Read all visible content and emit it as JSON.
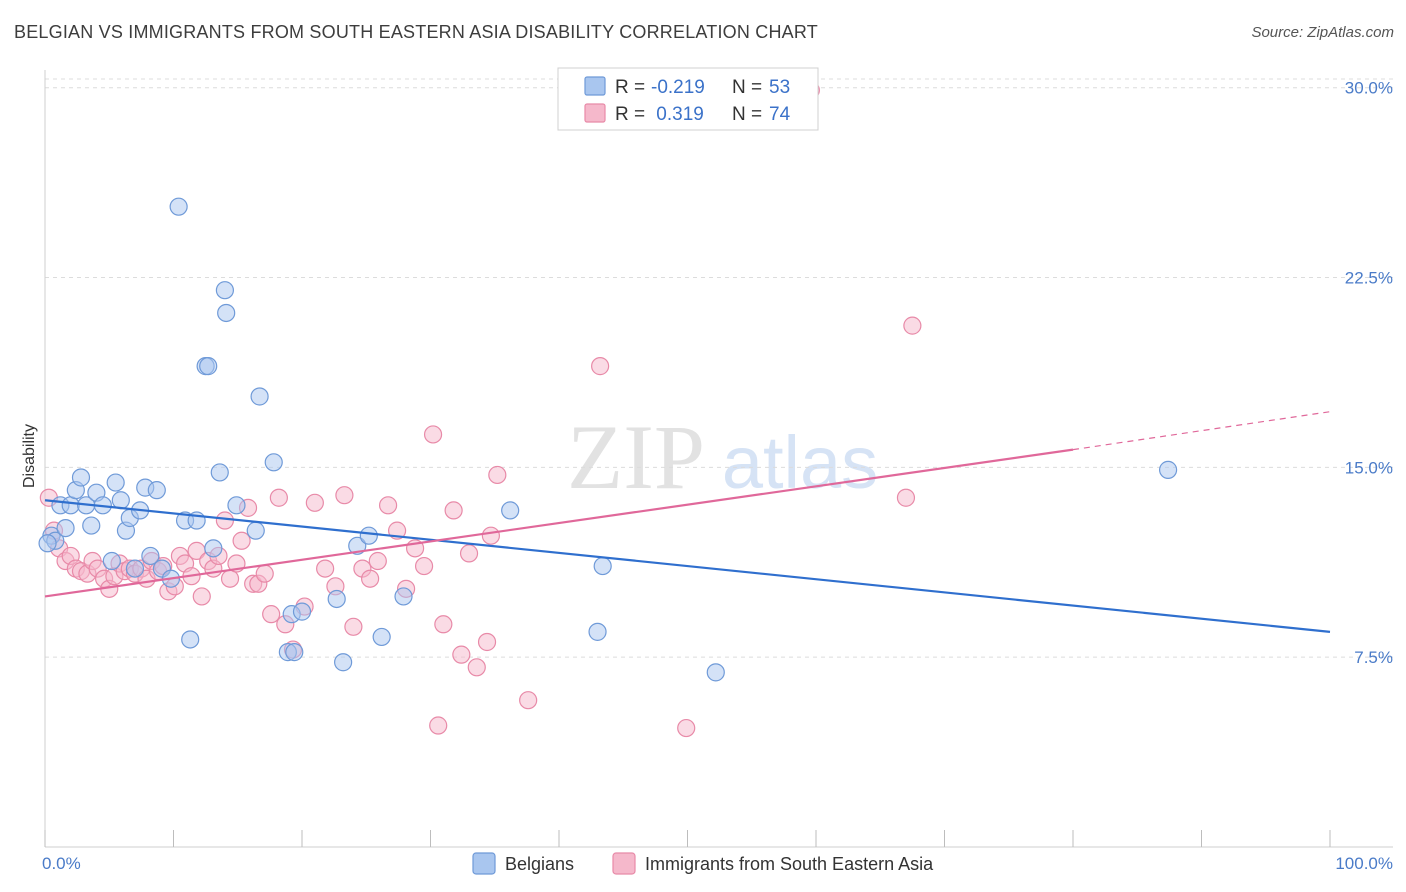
{
  "header": {
    "title": "BELGIAN VS IMMIGRANTS FROM SOUTH EASTERN ASIA DISABILITY CORRELATION CHART",
    "source": "Source: ZipAtlas.com"
  },
  "watermark": {
    "zip": "ZIP",
    "atlas": "atlas"
  },
  "colors": {
    "belgians_fill": "#a9c6ef",
    "belgians_stroke": "#6f9ad8",
    "belgians_line": "#2f6fce",
    "immigrants_fill": "#f5b8cb",
    "immigrants_stroke": "#e88aa8",
    "immigrants_line": "#e0689a",
    "tick_label": "#4a7bc8"
  },
  "stats_legend": {
    "rows": [
      {
        "r_label": "R =",
        "r_value": "-0.219",
        "n_label": "N =",
        "n_value": "53"
      },
      {
        "r_label": "R =",
        "r_value": " 0.319",
        "n_label": "N =",
        "n_value": "74"
      }
    ]
  },
  "chart_data": {
    "type": "scatter",
    "title": "BELGIAN VS IMMIGRANTS FROM SOUTH EASTERN ASIA DISABILITY CORRELATION CHART",
    "xlabel": "",
    "ylabel": "Disability",
    "xlim": [
      0,
      100
    ],
    "ylim": [
      0,
      30.7
    ],
    "x_tick_labels": [
      "0.0%",
      "100.0%"
    ],
    "y_ticks": [
      7.5,
      15.0,
      22.5,
      30.0
    ],
    "y_tick_labels": [
      "7.5%",
      "15.0%",
      "22.5%",
      "30.0%"
    ],
    "grid": true,
    "legend": [
      "Belgians",
      "Immigrants from South Eastern Asia"
    ],
    "series": [
      {
        "name": "Belgians",
        "r": -0.219,
        "n": 53,
        "trend": {
          "x_start": 0,
          "y_start": 13.7,
          "x_end": 100,
          "y_end": 8.5
        },
        "points": [
          [
            0.5,
            12.3
          ],
          [
            0.8,
            12.1
          ],
          [
            1.2,
            13.5
          ],
          [
            1.6,
            12.6
          ],
          [
            2.0,
            13.5
          ],
          [
            2.4,
            14.1
          ],
          [
            2.8,
            14.6
          ],
          [
            3.2,
            13.5
          ],
          [
            3.6,
            12.7
          ],
          [
            4.0,
            14.0
          ],
          [
            4.5,
            13.5
          ],
          [
            5.2,
            11.3
          ],
          [
            5.5,
            14.4
          ],
          [
            5.9,
            13.7
          ],
          [
            6.3,
            12.5
          ],
          [
            6.6,
            13.0
          ],
          [
            7.0,
            11.0
          ],
          [
            7.4,
            13.3
          ],
          [
            7.8,
            14.2
          ],
          [
            8.2,
            11.5
          ],
          [
            8.7,
            14.1
          ],
          [
            9.1,
            11.0
          ],
          [
            9.8,
            10.6
          ],
          [
            10.4,
            25.3
          ],
          [
            10.9,
            12.9
          ],
          [
            11.3,
            8.2
          ],
          [
            11.8,
            12.9
          ],
          [
            12.5,
            19.0
          ],
          [
            12.7,
            19.0
          ],
          [
            13.1,
            11.8
          ],
          [
            13.6,
            14.8
          ],
          [
            14.0,
            22.0
          ],
          [
            14.1,
            21.1
          ],
          [
            14.9,
            13.5
          ],
          [
            16.4,
            12.5
          ],
          [
            16.7,
            17.8
          ],
          [
            17.8,
            15.2
          ],
          [
            18.9,
            7.7
          ],
          [
            19.2,
            9.2
          ],
          [
            19.4,
            7.7
          ],
          [
            20.0,
            9.3
          ],
          [
            22.7,
            9.8
          ],
          [
            23.2,
            7.3
          ],
          [
            24.3,
            11.9
          ],
          [
            25.2,
            12.3
          ],
          [
            26.2,
            8.3
          ],
          [
            27.9,
            9.9
          ],
          [
            36.2,
            13.3
          ],
          [
            43.0,
            8.5
          ],
          [
            43.4,
            11.1
          ],
          [
            52.2,
            6.9
          ],
          [
            87.4,
            14.9
          ],
          [
            0.2,
            12.0
          ]
        ]
      },
      {
        "name": "Immigrants from South Eastern Asia",
        "r": 0.319,
        "n": 74,
        "trend": {
          "x_start": 0,
          "y_start": 9.9,
          "x_end": 80,
          "y_end": 15.7,
          "dash_end_x": 100,
          "dash_end_y": 17.2
        },
        "points": [
          [
            0.3,
            13.8
          ],
          [
            0.7,
            12.5
          ],
          [
            1.1,
            11.8
          ],
          [
            1.6,
            11.3
          ],
          [
            2.0,
            11.5
          ],
          [
            2.4,
            11.0
          ],
          [
            2.8,
            10.9
          ],
          [
            3.3,
            10.8
          ],
          [
            3.7,
            11.3
          ],
          [
            4.1,
            11.0
          ],
          [
            4.6,
            10.6
          ],
          [
            5.0,
            10.2
          ],
          [
            5.4,
            10.7
          ],
          [
            5.8,
            11.2
          ],
          [
            6.2,
            10.9
          ],
          [
            6.6,
            11.0
          ],
          [
            7.0,
            10.8
          ],
          [
            7.5,
            11.0
          ],
          [
            7.9,
            10.6
          ],
          [
            8.3,
            11.3
          ],
          [
            8.8,
            10.9
          ],
          [
            9.2,
            11.1
          ],
          [
            9.6,
            10.1
          ],
          [
            10.1,
            10.3
          ],
          [
            10.5,
            11.5
          ],
          [
            10.9,
            11.2
          ],
          [
            11.4,
            10.7
          ],
          [
            11.8,
            11.7
          ],
          [
            12.2,
            9.9
          ],
          [
            12.7,
            11.3
          ],
          [
            13.1,
            11.0
          ],
          [
            13.5,
            11.5
          ],
          [
            14.0,
            12.9
          ],
          [
            14.4,
            10.6
          ],
          [
            14.9,
            11.2
          ],
          [
            15.3,
            12.1
          ],
          [
            15.8,
            13.4
          ],
          [
            16.2,
            10.4
          ],
          [
            16.6,
            10.4
          ],
          [
            17.1,
            10.8
          ],
          [
            17.6,
            9.2
          ],
          [
            18.2,
            13.8
          ],
          [
            18.7,
            8.8
          ],
          [
            19.3,
            7.8
          ],
          [
            20.2,
            9.5
          ],
          [
            21.0,
            13.6
          ],
          [
            21.8,
            11.0
          ],
          [
            22.6,
            10.3
          ],
          [
            23.3,
            13.9
          ],
          [
            24.0,
            8.7
          ],
          [
            24.7,
            11.0
          ],
          [
            25.3,
            10.6
          ],
          [
            25.9,
            11.3
          ],
          [
            26.7,
            13.5
          ],
          [
            27.4,
            12.5
          ],
          [
            28.1,
            10.2
          ],
          [
            28.8,
            11.8
          ],
          [
            29.5,
            11.1
          ],
          [
            30.2,
            16.3
          ],
          [
            30.6,
            4.8
          ],
          [
            31.0,
            8.8
          ],
          [
            31.8,
            13.3
          ],
          [
            32.4,
            7.6
          ],
          [
            33.0,
            11.6
          ],
          [
            33.6,
            7.1
          ],
          [
            34.4,
            8.1
          ],
          [
            34.7,
            12.3
          ],
          [
            35.2,
            14.7
          ],
          [
            37.6,
            5.8
          ],
          [
            43.2,
            19.0
          ],
          [
            49.9,
            4.7
          ],
          [
            67.0,
            13.8
          ],
          [
            67.5,
            20.6
          ],
          [
            59.6,
            29.9
          ]
        ]
      }
    ]
  },
  "bottom_legend": {
    "items": [
      {
        "label": "Belgians"
      },
      {
        "label": "Immigrants from South Eastern Asia"
      }
    ]
  }
}
